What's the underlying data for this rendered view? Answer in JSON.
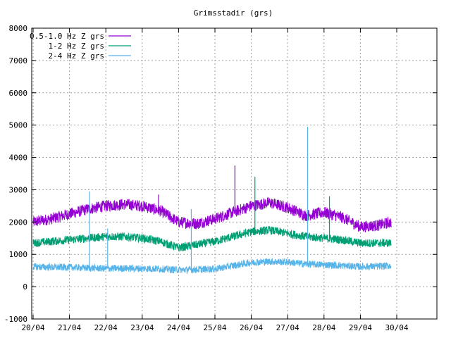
{
  "chart_data": {
    "type": "line",
    "title": "Grimsstadir (grs)",
    "xlabel": "",
    "ylabel": "",
    "x_range": [
      "2020-04-20",
      "2020-04-31"
    ],
    "x_tick_labels": [
      "20/04",
      "21/04",
      "22/04",
      "23/04",
      "24/04",
      "25/04",
      "26/04",
      "27/04",
      "28/04",
      "29/04",
      "30/04"
    ],
    "ylim": [
      -1000,
      8000
    ],
    "y_tick_labels": [
      "-1000",
      "0",
      "1000",
      "2000",
      "3000",
      "4000",
      "5000",
      "6000",
      "7000",
      "8000"
    ],
    "grid": true,
    "legend_position": "top-left",
    "series": [
      {
        "name": "0.5-1.0 Hz Z grs",
        "color": "#9400d3",
        "x_days": [
          0,
          0.5,
          1,
          1.5,
          2,
          2.5,
          3,
          3.5,
          4,
          4.5,
          5,
          5.5,
          6,
          6.5,
          7,
          7.5,
          8,
          8.5,
          9,
          9.5,
          9.85
        ],
        "values": [
          2000,
          2100,
          2250,
          2400,
          2500,
          2550,
          2500,
          2350,
          2000,
          1950,
          2100,
          2300,
          2500,
          2600,
          2450,
          2200,
          2300,
          2150,
          1850,
          1900,
          2000
        ],
        "spikes": [
          {
            "x_day": 5.55,
            "value": 3750
          },
          {
            "x_day": 3.45,
            "value": 2850
          }
        ]
      },
      {
        "name": "1-2 Hz Z grs",
        "color": "#009e73",
        "x_days": [
          0,
          0.5,
          1,
          1.5,
          2,
          2.5,
          3,
          3.5,
          4,
          4.5,
          5,
          5.5,
          6,
          6.5,
          7,
          7.5,
          8,
          8.5,
          9,
          9.5,
          9.85
        ],
        "values": [
          1350,
          1400,
          1450,
          1500,
          1550,
          1550,
          1500,
          1400,
          1200,
          1300,
          1400,
          1550,
          1700,
          1750,
          1650,
          1550,
          1500,
          1450,
          1350,
          1350,
          1350
        ],
        "spikes": [
          {
            "x_day": 6.1,
            "value": 3400
          },
          {
            "x_day": 8.15,
            "value": 2800
          }
        ]
      },
      {
        "name": "2-4 Hz Z grs",
        "color": "#56b4e9",
        "x_days": [
          0,
          0.5,
          1,
          1.5,
          2,
          2.5,
          3,
          3.5,
          4,
          4.5,
          5,
          5.5,
          6,
          6.5,
          7,
          7.5,
          8,
          8.5,
          9,
          9.5,
          9.85
        ],
        "values": [
          620,
          600,
          600,
          580,
          560,
          570,
          560,
          550,
          520,
          530,
          550,
          650,
          750,
          780,
          760,
          700,
          680,
          650,
          620,
          630,
          650
        ],
        "spikes": [
          {
            "x_day": 1.55,
            "value": 2950
          },
          {
            "x_day": 4.35,
            "value": 2400
          },
          {
            "x_day": 7.55,
            "value": 4950
          },
          {
            "x_day": 2.05,
            "value": 1800
          }
        ]
      }
    ]
  }
}
